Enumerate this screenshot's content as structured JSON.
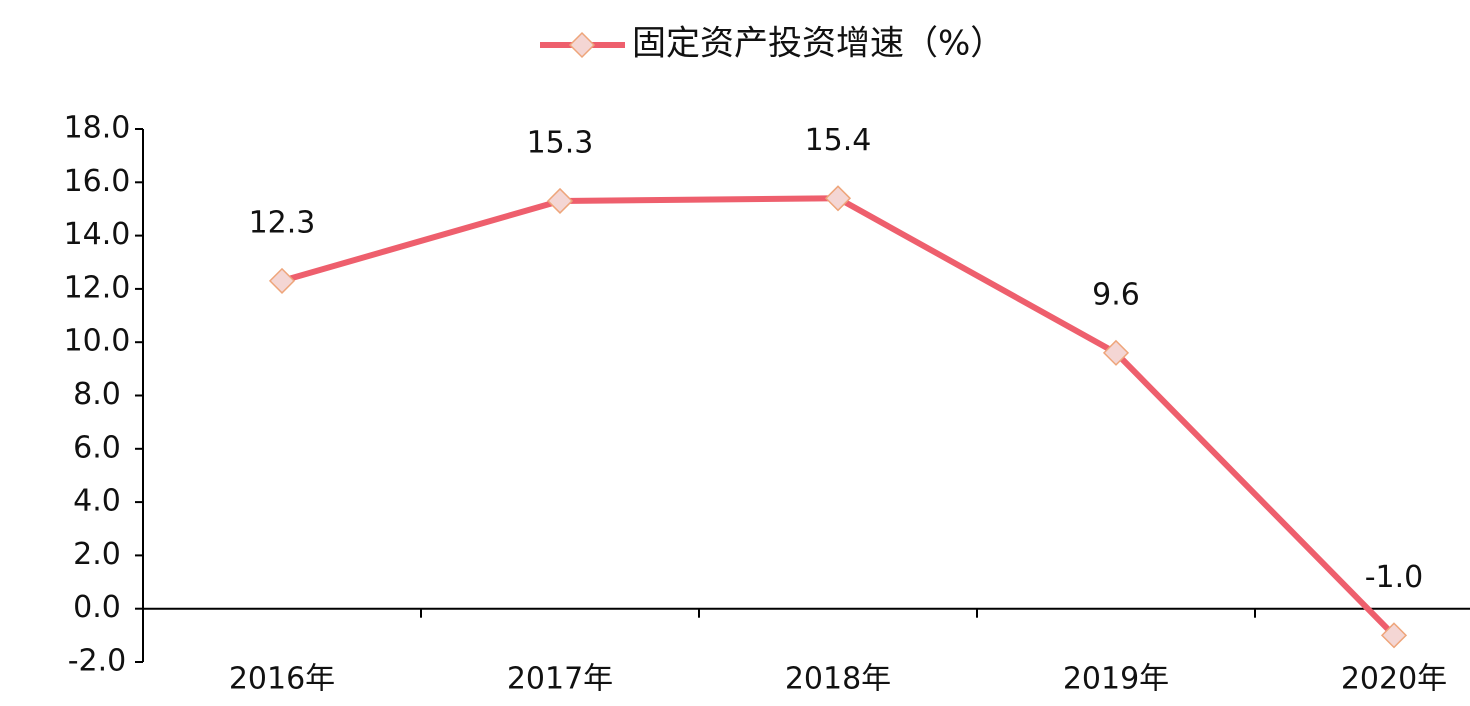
{
  "chart_data": {
    "type": "line",
    "categories": [
      "2016年",
      "2017年",
      "2018年",
      "2019年",
      "2020年"
    ],
    "series": [
      {
        "name": "固定资产投资增速（%）",
        "color": "#ee5f6d",
        "marker_fill": "#f4d6d4",
        "marker_stroke": "#eea57a",
        "values": [
          12.3,
          15.3,
          15.4,
          9.6,
          -1.0
        ],
        "value_labels": [
          "12.3",
          "15.3",
          "15.4",
          "9.6",
          "-1.0"
        ]
      }
    ],
    "ylim": [
      -2,
      18
    ],
    "yticks": [
      {
        "value": -2,
        "label": "-2.0"
      },
      {
        "value": 0,
        "label": "0.0"
      },
      {
        "value": 2,
        "label": "2.0"
      },
      {
        "value": 4,
        "label": "4.0"
      },
      {
        "value": 6,
        "label": "6.0"
      },
      {
        "value": 8,
        "label": "8.0"
      },
      {
        "value": 10,
        "label": "10.0"
      },
      {
        "value": 12,
        "label": "12.0"
      },
      {
        "value": 14,
        "label": "14.0"
      },
      {
        "value": 16,
        "label": "16.0"
      },
      {
        "value": 18,
        "label": "18.0"
      }
    ],
    "legend": "top",
    "grid": false
  }
}
